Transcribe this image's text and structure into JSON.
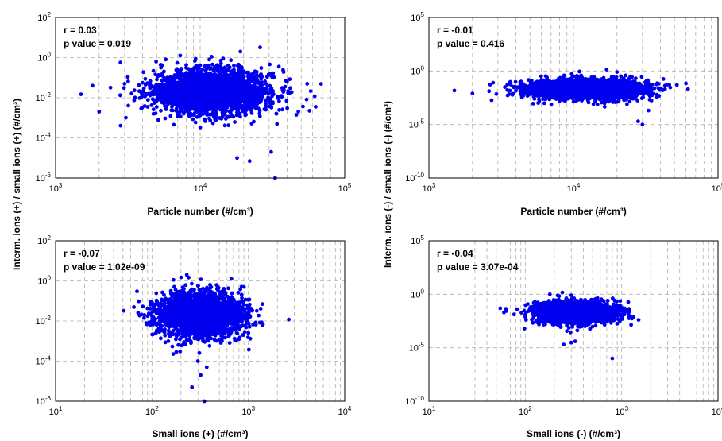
{
  "colors": {
    "points": "#0000ee",
    "grid": "#b0b0b0",
    "axis": "#000000"
  },
  "shared_labels": {
    "ylabel_left": "Interm. ions (+) / small ions (+)  (#/cm³)",
    "ylabel_right": "Interm. ions (-) / small ions (-)  (#/cm³)"
  },
  "chart_data": [
    {
      "type": "scatter",
      "panel": "top-left",
      "xlabel": "Particle number (#/cm³)",
      "xscale": "log",
      "yscale": "log",
      "xlim": [
        1000,
        100000
      ],
      "ylim": [
        1e-06,
        100
      ],
      "xticks": [
        3,
        4,
        5
      ],
      "yticks": [
        -6,
        -4,
        -2,
        0,
        2
      ],
      "grid": true,
      "annotation": {
        "r": "r = 0.03",
        "p": "p value = 0.019"
      },
      "cluster": {
        "x_center": 12000,
        "y_center": 0.02,
        "x_spread": 0.2,
        "y_spread": 0.55,
        "n": 2600
      },
      "points": [
        [
          1500,
          0.015
        ],
        [
          2000,
          0.002
        ],
        [
          1800,
          0.04
        ],
        [
          3000,
          0.05
        ],
        [
          55000,
          0.05
        ],
        [
          62000,
          0.012
        ],
        [
          33000,
          1e-06
        ],
        [
          31000,
          2e-05
        ],
        [
          22000,
          7e-06
        ],
        [
          18000,
          1e-05
        ],
        [
          26000,
          3.2
        ],
        [
          19000,
          2.0
        ],
        [
          34000,
          0.0005
        ],
        [
          40000,
          0.003
        ]
      ]
    },
    {
      "type": "scatter",
      "panel": "top-right",
      "xlabel": "Particle number (#/cm³)",
      "xscale": "log",
      "yscale": "log",
      "xlim": [
        1000,
        100000
      ],
      "ylim": [
        1e-10,
        100000
      ],
      "xticks": [
        3,
        4,
        5
      ],
      "yticks": [
        -10,
        -5,
        0,
        5
      ],
      "grid": true,
      "annotation": {
        "r": "r = -0.01",
        "p": "p value = 0.416"
      },
      "cluster": {
        "x_center": 12000,
        "y_center": 0.02,
        "x_spread": 0.2,
        "y_spread": 0.45,
        "n": 2600
      },
      "points": [
        [
          1500,
          0.015
        ],
        [
          2000,
          0.008
        ],
        [
          52000,
          0.05
        ],
        [
          60000,
          0.07
        ],
        [
          62000,
          0.02
        ],
        [
          28000,
          2e-05
        ],
        [
          30000,
          1e-05
        ],
        [
          33000,
          0.0002
        ],
        [
          20000,
          0.8
        ],
        [
          11000,
          0.9
        ]
      ]
    },
    {
      "type": "scatter",
      "panel": "bottom-left",
      "xlabel": "Small ions (+) (#/cm³)",
      "xscale": "log",
      "yscale": "log",
      "xlim": [
        10,
        10000
      ],
      "ylim": [
        1e-06,
        100
      ],
      "xticks": [
        1,
        2,
        3,
        4
      ],
      "yticks": [
        -6,
        -4,
        -2,
        0,
        2
      ],
      "grid": true,
      "annotation": {
        "r": "r = -0.07",
        "p": "p value = 1.02e-09"
      },
      "cluster": {
        "x_center": 330,
        "y_center": 0.02,
        "x_spread": 0.22,
        "y_spread": 0.55,
        "n": 2600
      },
      "points": [
        [
          65,
          0.05
        ],
        [
          70,
          0.3
        ],
        [
          1400,
          0.07
        ],
        [
          900,
          0.5
        ],
        [
          350,
          1e-06
        ],
        [
          370,
          5e-05
        ],
        [
          320,
          2e-05
        ],
        [
          260,
          5e-06
        ],
        [
          230,
          2.0
        ],
        [
          200,
          1.5
        ],
        [
          300,
          0.0001
        ]
      ]
    },
    {
      "type": "scatter",
      "panel": "bottom-right",
      "xlabel": "Small ions (-) (#/cm³)",
      "xscale": "log",
      "yscale": "log",
      "xlim": [
        10,
        10000
      ],
      "ylim": [
        1e-10,
        100000
      ],
      "xticks": [
        1,
        2,
        3,
        4
      ],
      "yticks": [
        -10,
        -5,
        0,
        5
      ],
      "grid": true,
      "annotation": {
        "r": "r = -0.04",
        "p": "p value = 3.07e-04"
      },
      "cluster": {
        "x_center": 330,
        "y_center": 0.02,
        "x_spread": 0.2,
        "y_spread": 0.5,
        "n": 2400
      },
      "points": [
        [
          55,
          0.05
        ],
        [
          60,
          0.02
        ],
        [
          1500,
          0.004
        ],
        [
          1200,
          0.01
        ],
        [
          800,
          1e-06
        ],
        [
          300,
          3e-05
        ],
        [
          330,
          4e-05
        ],
        [
          250,
          2e-05
        ],
        [
          180,
          1.0
        ],
        [
          300,
          0.8
        ]
      ]
    }
  ]
}
